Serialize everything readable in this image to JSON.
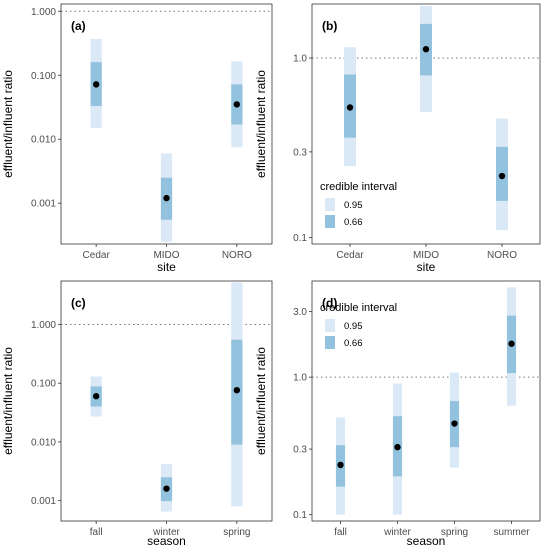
{
  "chart_data": [
    {
      "panel_label": "(a)",
      "type": "interval",
      "scale": "log",
      "xlabel": "site",
      "ylabel": "effluent/influent ratio",
      "ylim": [
        0.00023,
        1.3
      ],
      "yticks": [
        0.001,
        0.01,
        0.1,
        1.0
      ],
      "ytick_labels": [
        "0.001",
        "0.010",
        "0.100",
        "1.000"
      ],
      "reference_line": 1.0,
      "categories": [
        "Cedar",
        "MIDO",
        "NORO"
      ],
      "median": [
        0.072,
        0.0012,
        0.035
      ],
      "ci66": [
        [
          0.033,
          0.16
        ],
        [
          0.00055,
          0.0025
        ],
        [
          0.017,
          0.072
        ]
      ],
      "ci95": [
        [
          0.015,
          0.37
        ],
        [
          0.00025,
          0.006
        ],
        [
          0.0075,
          0.165
        ]
      ]
    },
    {
      "panel_label": "(b)",
      "type": "interval",
      "scale": "log",
      "xlabel": "site",
      "ylabel": "effluent/influent ratio",
      "ylim": [
        0.092,
        2.0
      ],
      "yticks": [
        0.1,
        0.3,
        1.0
      ],
      "ytick_labels": [
        "0.1",
        "0.3",
        "1.0"
      ],
      "reference_line": 1.0,
      "categories": [
        "Cedar",
        "MIDO",
        "NORO"
      ],
      "median": [
        0.53,
        1.12,
        0.22
      ],
      "ci66": [
        [
          0.36,
          0.81
        ],
        [
          0.8,
          1.55
        ],
        [
          0.16,
          0.32
        ]
      ],
      "ci95": [
        [
          0.25,
          1.15
        ],
        [
          0.5,
          1.95
        ],
        [
          0.11,
          0.46
        ]
      ],
      "legend": {
        "title": "credible interval",
        "items": [
          "0.95",
          "0.66"
        ],
        "position": "bottom-left"
      }
    },
    {
      "panel_label": "(c)",
      "type": "interval",
      "scale": "log",
      "xlabel": "season",
      "ylabel": "effluent/influent ratio",
      "ylim": [
        0.00045,
        5.5
      ],
      "yticks": [
        0.001,
        0.01,
        0.1,
        1.0
      ],
      "ytick_labels": [
        "0.001",
        "0.010",
        "0.100",
        "1.000"
      ],
      "reference_line": 1.0,
      "categories": [
        "fall",
        "winter",
        "spring"
      ],
      "median": [
        0.06,
        0.0016,
        0.076
      ],
      "ci66": [
        [
          0.04,
          0.088
        ],
        [
          0.00098,
          0.0025
        ],
        [
          0.009,
          0.55
        ]
      ],
      "ci95": [
        [
          0.027,
          0.13
        ],
        [
          0.00065,
          0.0042
        ],
        [
          0.0008,
          5.2
        ]
      ]
    },
    {
      "panel_label": "(d)",
      "type": "interval",
      "scale": "log",
      "xlabel": "season",
      "ylabel": "effluent/influent ratio",
      "ylim": [
        0.09,
        5.0
      ],
      "yticks": [
        0.1,
        0.3,
        1.0,
        3.0
      ],
      "ytick_labels": [
        "0.1",
        "0.3",
        "1.0",
        "3.0"
      ],
      "reference_line": 1.0,
      "categories": [
        "fall",
        "winter",
        "spring",
        "summer"
      ],
      "median": [
        0.23,
        0.31,
        0.46,
        1.75
      ],
      "ci66": [
        [
          0.16,
          0.32
        ],
        [
          0.19,
          0.52
        ],
        [
          0.31,
          0.67
        ],
        [
          1.07,
          2.8
        ]
      ],
      "ci95": [
        [
          0.1,
          0.51
        ],
        [
          0.1,
          0.9
        ],
        [
          0.22,
          1.08
        ],
        [
          0.62,
          4.5
        ]
      ],
      "legend": {
        "title": "credible interval",
        "items": [
          "0.95",
          "0.66"
        ],
        "position": "top-left"
      }
    }
  ],
  "colors": {
    "ci95": "#dbe9f7",
    "ci66": "#93c2de",
    "median": "#000000",
    "reference_line": "#777777",
    "axis_text": "#4d4d4d",
    "title_text": "#000000"
  }
}
